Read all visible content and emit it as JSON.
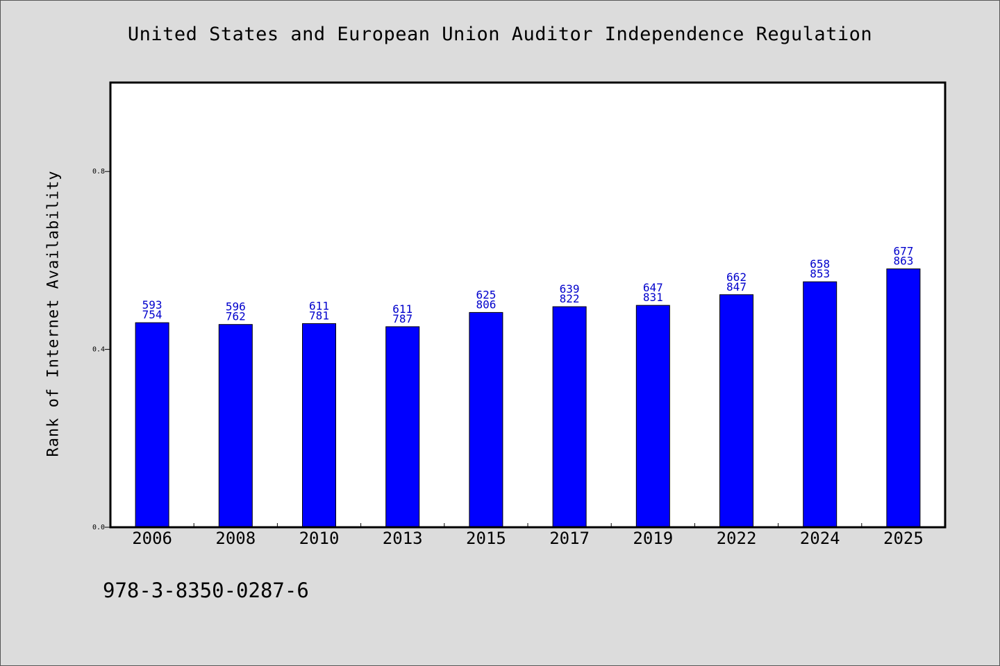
{
  "title": "United States and European Union Auditor Independence Regulation",
  "footer_code": "978-3-8350-0287-6",
  "colors": {
    "background": "#dcdcdc",
    "plot_background": "#ffffff",
    "bar_fill": "#0000ff",
    "label_color": "#0000cc"
  },
  "chart_data": {
    "type": "bar",
    "categories": [
      "2006",
      "2008",
      "2010",
      "2013",
      "2015",
      "2017",
      "2019",
      "2022",
      "2024",
      "2025"
    ],
    "values": [
      0.46,
      0.456,
      0.458,
      0.451,
      0.483,
      0.496,
      0.499,
      0.523,
      0.552,
      0.581
    ],
    "bar_labels_upper": [
      "593",
      "596",
      "611",
      "611",
      "625",
      "639",
      "647",
      "662",
      "658",
      "677"
    ],
    "bar_labels_lower": [
      "754",
      "762",
      "781",
      "787",
      "806",
      "822",
      "831",
      "847",
      "853",
      "863"
    ],
    "xlabel": "",
    "ylabel": "Rank of Internet Availability",
    "ylim": [
      0,
      1.0
    ],
    "yticks": [
      0.0,
      0.4,
      0.8
    ],
    "ytick_labels": [
      "0.0",
      "0.4",
      "0.8"
    ],
    "grid": false,
    "legend": "none"
  }
}
